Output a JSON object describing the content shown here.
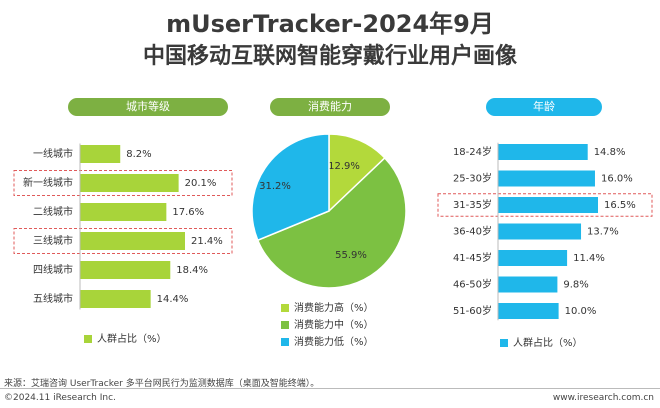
{
  "header": {
    "title": "mUserTracker-2024年9月",
    "subtitle": "中国移动互联网智能穿戴行业用户画像"
  },
  "colors": {
    "green": "#a8d43a",
    "dark_green": "#7db042",
    "blue": "#1fb7ea",
    "highlight": "#e05a5a"
  },
  "chart_data": [
    {
      "type": "bar",
      "title": "城市等级",
      "categories": [
        "一线城市",
        "新一线城市",
        "二线城市",
        "三线城市",
        "四线城市",
        "五线城市"
      ],
      "values": [
        8.2,
        20.1,
        17.6,
        21.4,
        18.4,
        14.4
      ],
      "value_labels": [
        "8.2%",
        "20.1%",
        "17.6%",
        "21.4%",
        "18.4%",
        "14.4%"
      ],
      "highlighted": [
        1,
        3
      ],
      "legend": {
        "label": "人群占比（%）",
        "position": "bottom-left"
      },
      "color": "#a8d43a"
    },
    {
      "type": "pie",
      "title": "消费能力",
      "categories": [
        "消费能力高（%）",
        "消费能力中（%）",
        "消费能力低（%）"
      ],
      "values": [
        12.9,
        55.9,
        31.2
      ],
      "value_labels": [
        "12.9%",
        "55.9%",
        "31.2%"
      ],
      "colors": [
        "#b3d93b",
        "#7cc142",
        "#1fb7ea"
      ],
      "legend": {
        "position": "bottom"
      }
    },
    {
      "type": "bar",
      "title": "年龄",
      "categories": [
        "18-24岁",
        "25-30岁",
        "31-35岁",
        "36-40岁",
        "41-45岁",
        "46-50岁",
        "51-60岁"
      ],
      "values": [
        14.8,
        16.0,
        16.5,
        13.7,
        11.4,
        9.8,
        10.0
      ],
      "value_labels": [
        "14.8%",
        "16.0%",
        "16.5%",
        "13.7%",
        "11.4%",
        "9.8%",
        "10.0%"
      ],
      "highlighted": [
        2
      ],
      "legend": {
        "label": "人群占比（%）",
        "position": "bottom-left"
      },
      "color": "#1fb7ea"
    }
  ],
  "footer": {
    "source": "来源：艾瑞咨询 UserTracker 多平台网民行为监测数据库（桌面及智能终端）。",
    "copyright": "©2024.11 iResearch Inc.",
    "website": "www.iresearch.com.cn"
  }
}
